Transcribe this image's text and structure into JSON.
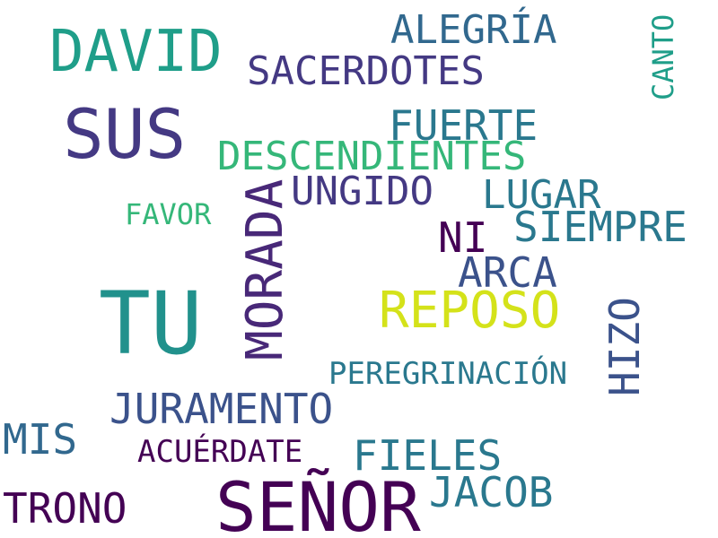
{
  "words": [
    {
      "id": "david",
      "text": "DAVID",
      "color": "#1f9e89"
    },
    {
      "id": "alegria",
      "text": "ALEGRÍA",
      "color": "#31688e"
    },
    {
      "id": "sacerdotes",
      "text": "SACERDOTES",
      "color": "#443983"
    },
    {
      "id": "canto",
      "text": "CANTO",
      "color": "#1f9e89"
    },
    {
      "id": "sus",
      "text": "SUS",
      "color": "#443983"
    },
    {
      "id": "fuerte",
      "text": "FUERTE",
      "color": "#2a788e"
    },
    {
      "id": "descendientes",
      "text": "DESCENDIENTES",
      "color": "#35b779"
    },
    {
      "id": "ungido",
      "text": "UNGIDO",
      "color": "#443983"
    },
    {
      "id": "lugar",
      "text": "LUGAR",
      "color": "#2a788e"
    },
    {
      "id": "favor",
      "text": "FAVOR",
      "color": "#35b779"
    },
    {
      "id": "morada",
      "text": "MORADA",
      "color": "#482878"
    },
    {
      "id": "siempre",
      "text": "SIEMPRE",
      "color": "#2a788e"
    },
    {
      "id": "ni",
      "text": "NI",
      "color": "#440154"
    },
    {
      "id": "arca",
      "text": "ARCA",
      "color": "#3b528b"
    },
    {
      "id": "tu",
      "text": "TU",
      "color": "#21918c"
    },
    {
      "id": "reposo",
      "text": "REPOSO",
      "color": "#d4e21a"
    },
    {
      "id": "hizo",
      "text": "HIZO",
      "color": "#3b528b"
    },
    {
      "id": "peregrinacion",
      "text": "PEREGRINACIÓN",
      "color": "#2a788e"
    },
    {
      "id": "juramento",
      "text": "JURAMENTO",
      "color": "#3b528b"
    },
    {
      "id": "mis",
      "text": "MIS",
      "color": "#31688e"
    },
    {
      "id": "acuerdate",
      "text": "ACUÉRDATE",
      "color": "#440154"
    },
    {
      "id": "fieles",
      "text": "FIELES",
      "color": "#2a788e"
    },
    {
      "id": "jacob",
      "text": "JACOB",
      "color": "#2a788e"
    },
    {
      "id": "trono",
      "text": "TRONO",
      "color": "#440154"
    },
    {
      "id": "senor",
      "text": "SEÑOR",
      "color": "#440154"
    }
  ]
}
